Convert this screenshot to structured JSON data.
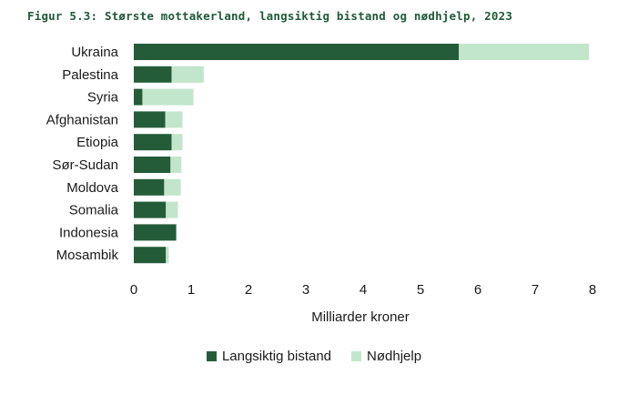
{
  "figure_title": "Figur 5.3: Største mottakerland, langsiktig bistand og nødhjelp, 2023",
  "chart_data": {
    "type": "bar",
    "orientation": "horizontal",
    "stacked": true,
    "title": "Figur 5.3: Største mottakerland, langsiktig bistand og nødhjelp, 2023",
    "xlabel": "Milliarder kroner",
    "ylabel": "",
    "xlim": [
      0,
      8
    ],
    "xticks": [
      0,
      1,
      2,
      3,
      4,
      5,
      6,
      7,
      8
    ],
    "grid": false,
    "legend_position": "bottom",
    "categories": [
      "Ukraina",
      "Palestina",
      "Syria",
      "Afghanistan",
      "Etiopia",
      "Sør-Sudan",
      "Moldova",
      "Somalia",
      "Indonesia",
      "Mosambik"
    ],
    "series": [
      {
        "name": "Langsiktig bistand",
        "color": "#245c3a",
        "values": [
          5.67,
          0.66,
          0.15,
          0.55,
          0.66,
          0.64,
          0.53,
          0.56,
          0.74,
          0.56
        ]
      },
      {
        "name": "Nødhjelp",
        "color": "#c2e6cb",
        "values": [
          2.27,
          0.56,
          0.89,
          0.3,
          0.19,
          0.19,
          0.29,
          0.21,
          0.0,
          0.05
        ]
      }
    ]
  }
}
